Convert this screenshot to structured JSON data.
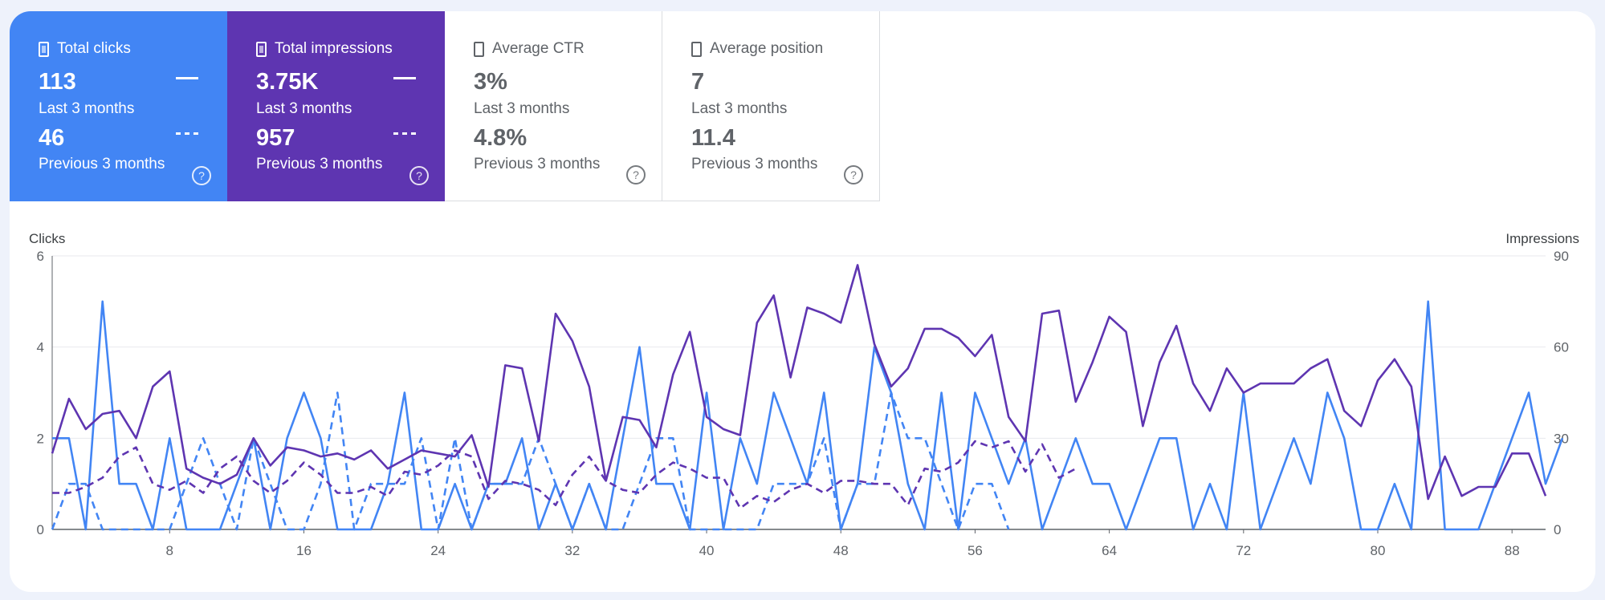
{
  "metrics": [
    {
      "title": "Total clicks",
      "value": "113",
      "value_label": "Last 3 months",
      "prev_value": "46",
      "prev_label": "Previous 3 months",
      "help": "?",
      "selected": true,
      "color": "#4285f4"
    },
    {
      "title": "Total impressions",
      "value": "3.75K",
      "value_label": "Last 3 months",
      "prev_value": "957",
      "prev_label": "Previous 3 months",
      "help": "?",
      "selected": true,
      "color": "#5e35b1"
    },
    {
      "title": "Average CTR",
      "value": "3%",
      "value_label": "Last 3 months",
      "prev_value": "4.8%",
      "prev_label": "Previous 3 months",
      "help": "?",
      "selected": false
    },
    {
      "title": "Average position",
      "value": "7",
      "value_label": "Last 3 months",
      "prev_value": "11.4",
      "prev_label": "Previous 3 months",
      "help": "?",
      "selected": false
    }
  ],
  "chart_data": {
    "type": "line",
    "ylabel_left": "Clicks",
    "ylabel_right": "Impressions",
    "ylim_left": [
      0,
      6
    ],
    "ylim_right": [
      0,
      90
    ],
    "yticks_left": [
      "0",
      "2",
      "4",
      "6"
    ],
    "yticks_right": [
      "0",
      "30",
      "60",
      "90"
    ],
    "xlim": [
      1,
      90
    ],
    "xticks": [
      8,
      16,
      24,
      32,
      40,
      48,
      56,
      64,
      72,
      80,
      88
    ],
    "grid": true,
    "colors": {
      "clicks": "#4285f4",
      "impressions": "#5e35b1"
    },
    "series": [
      {
        "key": "clicks_current",
        "axis": "left",
        "style": "solid",
        "color": "#4285f4",
        "values": [
          2,
          2,
          0,
          5,
          1,
          1,
          0,
          2,
          0,
          0,
          0,
          1,
          2,
          0,
          2,
          3,
          2,
          0,
          0,
          0,
          1,
          3,
          0,
          0,
          1,
          0,
          1,
          1,
          2,
          0,
          1,
          0,
          1,
          0,
          2,
          4,
          1,
          1,
          0,
          3,
          0,
          2,
          1,
          3,
          2,
          1,
          3,
          0,
          1,
          4,
          3,
          1,
          0,
          3,
          0,
          3,
          2,
          1,
          2,
          0,
          1,
          2,
          1,
          1,
          0,
          1,
          2,
          2,
          0,
          1,
          0,
          3,
          0,
          1,
          2,
          1,
          3,
          2,
          0,
          0,
          1,
          0,
          5,
          0,
          0,
          0,
          1,
          2,
          3,
          1,
          2
        ]
      },
      {
        "key": "clicks_previous",
        "axis": "left",
        "style": "dashed",
        "color": "#4285f4",
        "values": [
          0,
          1,
          1,
          0,
          0,
          0,
          0,
          0,
          1,
          2,
          1,
          0,
          2,
          1,
          0,
          0,
          1,
          3,
          0,
          1,
          1,
          1,
          2,
          0,
          2,
          0,
          1,
          1,
          1,
          2,
          1,
          0,
          1,
          0,
          0,
          1,
          2,
          2,
          0,
          0,
          0,
          0,
          0,
          1,
          1,
          1,
          2,
          0,
          1,
          1,
          3,
          2,
          2,
          1,
          0,
          1,
          1,
          0
        ]
      },
      {
        "key": "impressions_current",
        "axis": "right",
        "style": "solid",
        "color": "#5e35b1",
        "values": [
          25,
          43,
          33,
          38,
          39,
          30,
          47,
          52,
          20,
          17,
          15,
          18,
          30,
          21,
          27,
          26,
          24,
          25,
          23,
          26,
          20,
          23,
          26,
          25,
          24,
          31,
          14,
          54,
          53,
          29,
          71,
          62,
          47,
          16,
          37,
          36,
          27,
          51,
          65,
          37,
          33,
          31,
          68,
          77,
          50,
          73,
          71,
          68,
          87,
          61,
          47,
          53,
          66,
          66,
          63,
          57,
          64,
          37,
          29,
          71,
          72,
          42,
          55,
          70,
          65,
          34,
          55,
          67,
          48,
          39,
          53,
          45,
          48,
          48,
          48,
          53,
          56,
          39,
          34,
          49,
          56,
          47,
          10,
          24,
          11,
          14,
          14,
          25,
          25,
          11
        ]
      },
      {
        "key": "impressions_previous",
        "axis": "right",
        "style": "dashed",
        "color": "#5e35b1",
        "values": [
          12,
          12,
          14,
          17,
          24,
          27,
          15,
          13,
          16,
          12,
          20,
          24,
          16,
          12,
          16,
          22,
          18,
          12,
          12,
          14,
          11,
          19,
          18,
          21,
          26,
          24,
          10,
          16,
          15,
          13,
          8,
          18,
          24,
          16,
          13,
          12,
          18,
          22,
          20,
          17,
          17,
          7,
          11,
          9,
          13,
          15,
          12,
          16,
          16,
          15,
          15,
          8,
          20,
          19,
          22,
          29,
          27,
          29,
          19,
          28,
          17,
          20
        ]
      }
    ]
  }
}
